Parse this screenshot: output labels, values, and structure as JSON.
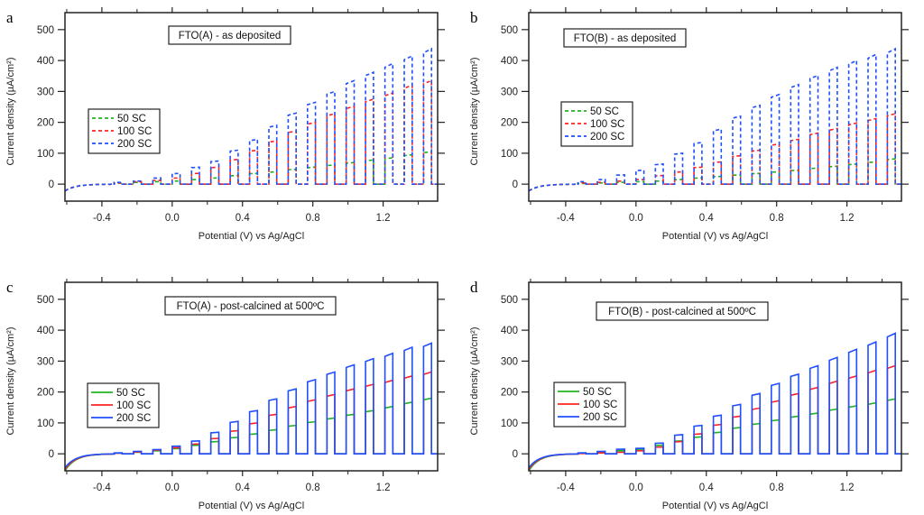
{
  "chart_data": [
    {
      "type": "line",
      "panel_label": "a",
      "annotation": "FTO(A) - as deposited",
      "xlabel": "Potential (V) vs  Ag/AgCl",
      "ylabel": "Current density (µA/cm²)",
      "xlim": [
        -0.61,
        1.51
      ],
      "ylim": [
        -55,
        555
      ],
      "xticks": [
        "-0.4",
        "0.0",
        "0.4",
        "0.8",
        "1.2"
      ],
      "yticks": [
        "0",
        "100",
        "200",
        "300",
        "400",
        "500"
      ],
      "line_style": "dashed",
      "legend_position": "middle-left",
      "series": [
        {
          "name": "50 SC",
          "color": "#1fb41f",
          "x": [
            -0.33,
            -0.22,
            -0.11,
            0.0,
            0.11,
            0.22,
            0.33,
            0.44,
            0.55,
            0.66,
            0.77,
            0.88,
            0.99,
            1.1,
            1.21,
            1.32,
            1.43
          ],
          "y": [
            3,
            6,
            8,
            10,
            15,
            20,
            28,
            35,
            40,
            48,
            55,
            62,
            70,
            78,
            85,
            95,
            105
          ]
        },
        {
          "name": "100 SC",
          "color": "#ff2222",
          "x": [
            -0.33,
            -0.22,
            -0.11,
            0.0,
            0.11,
            0.22,
            0.33,
            0.44,
            0.55,
            0.66,
            0.77,
            0.88,
            0.99,
            1.1,
            1.21,
            1.32,
            1.43
          ],
          "y": [
            4,
            8,
            12,
            20,
            35,
            55,
            80,
            110,
            140,
            172,
            200,
            228,
            252,
            275,
            295,
            320,
            335
          ]
        },
        {
          "name": "200 SC",
          "color": "#1f4fff",
          "x": [
            -0.33,
            -0.22,
            -0.11,
            0.0,
            0.11,
            0.22,
            0.33,
            0.44,
            0.55,
            0.66,
            0.77,
            0.88,
            0.99,
            1.1,
            1.21,
            1.32,
            1.43
          ],
          "y": [
            6,
            10,
            20,
            35,
            55,
            75,
            110,
            145,
            190,
            230,
            265,
            300,
            335,
            362,
            390,
            415,
            438
          ]
        }
      ]
    },
    {
      "type": "line",
      "panel_label": "b",
      "annotation": "FTO(B) - as deposited",
      "xlabel": "Potential (V) vs  Ag/AgCl",
      "ylabel": "Current density (µA/cm²)",
      "xlim": [
        -0.61,
        1.51
      ],
      "ylim": [
        -55,
        555
      ],
      "xticks": [
        "-0.4",
        "0.0",
        "0.4",
        "0.8",
        "1.2"
      ],
      "yticks": [
        "0",
        "100",
        "200",
        "300",
        "400",
        "500"
      ],
      "line_style": "dashed",
      "legend_position": "middle-left",
      "series": [
        {
          "name": "50 SC",
          "color": "#1fb41f",
          "x": [
            -0.33,
            -0.22,
            -0.11,
            0.0,
            0.11,
            0.22,
            0.33,
            0.44,
            0.55,
            0.66,
            0.77,
            0.88,
            0.99,
            1.1,
            1.21,
            1.32,
            1.43
          ],
          "y": [
            2,
            4,
            6,
            8,
            10,
            15,
            20,
            25,
            30,
            35,
            40,
            45,
            52,
            58,
            65,
            72,
            82
          ]
        },
        {
          "name": "100 SC",
          "color": "#ff2222",
          "x": [
            -0.33,
            -0.22,
            -0.11,
            0.0,
            0.11,
            0.22,
            0.33,
            0.44,
            0.55,
            0.66,
            0.77,
            0.88,
            0.99,
            1.1,
            1.21,
            1.32,
            1.43
          ],
          "y": [
            4,
            6,
            10,
            15,
            28,
            40,
            55,
            72,
            92,
            110,
            130,
            145,
            165,
            180,
            198,
            212,
            228
          ]
        },
        {
          "name": "200 SC",
          "color": "#1f4fff",
          "x": [
            -0.33,
            -0.22,
            -0.11,
            0.0,
            0.11,
            0.22,
            0.33,
            0.44,
            0.55,
            0.66,
            0.77,
            0.88,
            0.99,
            1.1,
            1.21,
            1.32,
            1.43
          ],
          "y": [
            8,
            15,
            30,
            45,
            65,
            100,
            135,
            178,
            220,
            255,
            290,
            322,
            352,
            378,
            400,
            420,
            438
          ]
        }
      ]
    },
    {
      "type": "line",
      "panel_label": "c",
      "annotation": "FTO(A) - post-calcined at 500ºC",
      "xlabel": "Potential (V) vs  Ag/AgCl",
      "ylabel": "Current density (µA/cm²)",
      "xlim": [
        -0.61,
        1.51
      ],
      "ylim": [
        -55,
        555
      ],
      "xticks": [
        "-0.4",
        "0.0",
        "0.4",
        "0.8",
        "1.2"
      ],
      "yticks": [
        "0",
        "100",
        "200",
        "300",
        "400",
        "500"
      ],
      "line_style": "solid",
      "legend_position": "middle-left",
      "series": [
        {
          "name": "50 SC",
          "color": "#1fb41f",
          "x": [
            -0.33,
            -0.22,
            -0.11,
            0.0,
            0.11,
            0.22,
            0.33,
            0.44,
            0.55,
            0.66,
            0.77,
            0.88,
            0.99,
            1.1,
            1.21,
            1.32,
            1.43
          ],
          "y": [
            2,
            5,
            10,
            17,
            28,
            40,
            53,
            65,
            78,
            92,
            104,
            116,
            128,
            140,
            153,
            167,
            180
          ]
        },
        {
          "name": "100 SC",
          "color": "#ff2222",
          "x": [
            -0.33,
            -0.22,
            -0.11,
            0.0,
            0.11,
            0.22,
            0.33,
            0.44,
            0.55,
            0.66,
            0.77,
            0.88,
            0.99,
            1.1,
            1.21,
            1.32,
            1.43
          ],
          "y": [
            2,
            6,
            12,
            20,
            32,
            50,
            75,
            100,
            128,
            153,
            175,
            192,
            210,
            225,
            238,
            252,
            265
          ]
        },
        {
          "name": "200 SC",
          "color": "#1f4fff",
          "x": [
            -0.33,
            -0.22,
            -0.11,
            0.0,
            0.11,
            0.22,
            0.33,
            0.44,
            0.55,
            0.66,
            0.77,
            0.88,
            0.99,
            1.1,
            1.21,
            1.32,
            1.43
          ],
          "y": [
            3,
            8,
            14,
            25,
            42,
            70,
            105,
            140,
            178,
            210,
            240,
            265,
            288,
            308,
            325,
            345,
            358
          ]
        }
      ]
    },
    {
      "type": "line",
      "panel_label": "d",
      "annotation": "FTO(B) - post-calcined at 500ºC",
      "xlabel": "Potential (V) vs  Ag/AgCl",
      "ylabel": "Current density (µA/cm²)",
      "xlim": [
        -0.61,
        1.51
      ],
      "ylim": [
        -55,
        555
      ],
      "xticks": [
        "-0.4",
        "0.0",
        "0.4",
        "0.8",
        "1.2"
      ],
      "yticks": [
        "0",
        "100",
        "200",
        "300",
        "400",
        "500"
      ],
      "line_style": "solid",
      "legend_position": "middle-left",
      "series": [
        {
          "name": "50 SC",
          "color": "#1fb41f",
          "x": [
            -0.33,
            -0.22,
            -0.11,
            0.0,
            0.11,
            0.22,
            0.33,
            0.44,
            0.55,
            0.66,
            0.77,
            0.88,
            0.99,
            1.1,
            1.21,
            1.32,
            1.43
          ],
          "y": [
            2,
            5,
            10,
            15,
            28,
            42,
            55,
            70,
            85,
            98,
            110,
            122,
            132,
            145,
            155,
            165,
            178
          ]
        },
        {
          "name": "100 SC",
          "color": "#ff2222",
          "x": [
            -0.33,
            -0.22,
            -0.11,
            0.0,
            0.11,
            0.22,
            0.33,
            0.44,
            0.55,
            0.66,
            0.77,
            0.88,
            0.99,
            1.1,
            1.21,
            1.32,
            1.43
          ],
          "y": [
            1,
            3,
            5,
            10,
            22,
            40,
            65,
            95,
            122,
            148,
            172,
            195,
            215,
            235,
            252,
            270,
            285
          ]
        },
        {
          "name": "200 SC",
          "color": "#1f4fff",
          "x": [
            -0.33,
            -0.22,
            -0.11,
            0.0,
            0.11,
            0.22,
            0.33,
            0.44,
            0.55,
            0.66,
            0.77,
            0.88,
            0.99,
            1.1,
            1.21,
            1.32,
            1.43
          ],
          "y": [
            3,
            8,
            15,
            18,
            35,
            62,
            92,
            125,
            160,
            195,
            228,
            258,
            285,
            312,
            338,
            362,
            390
          ]
        }
      ]
    }
  ]
}
